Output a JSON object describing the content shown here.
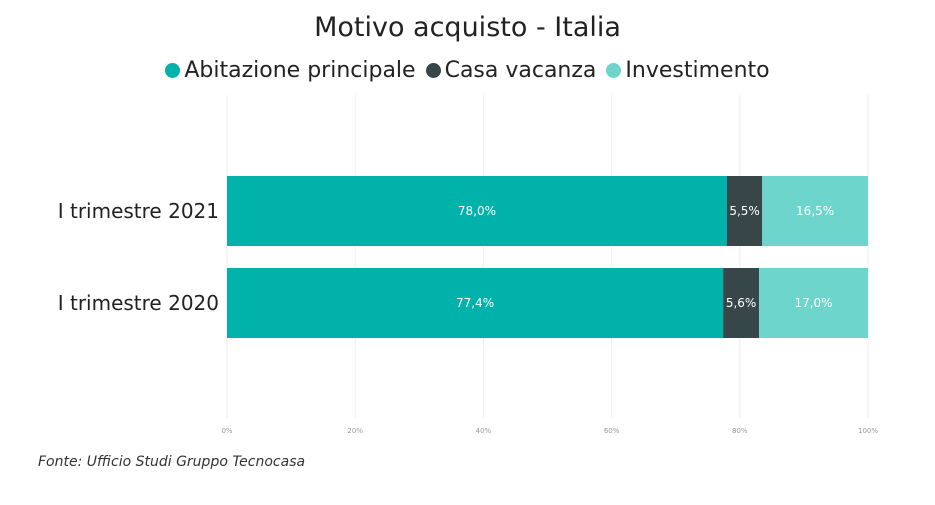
{
  "chart_data": {
    "type": "bar",
    "orientation": "horizontal",
    "stacked": true,
    "title": "Motivo acquisto - Italia",
    "categories": [
      "I trimestre 2021",
      "I trimestre 2020"
    ],
    "series": [
      {
        "name": "Abitazione principale",
        "values": [
          78.0,
          77.4
        ],
        "labels": [
          "78,0%",
          "77,4%"
        ],
        "color": "#00b2a9",
        "label_color": "#ffffff"
      },
      {
        "name": "Casa vacanza",
        "values": [
          5.5,
          5.6
        ],
        "labels": [
          "5,5%",
          "5,6%"
        ],
        "color": "#374649",
        "label_color": "#ffffff"
      },
      {
        "name": "Investimento",
        "values": [
          16.5,
          17.0
        ],
        "labels": [
          "16,5%",
          "17,0%"
        ],
        "color": "#6dd5cb",
        "label_color": "#ffffff"
      }
    ],
    "xlim": [
      0,
      100
    ],
    "x_ticks": [
      0,
      20,
      40,
      60,
      80,
      100
    ],
    "x_tick_labels": [
      "0%",
      "20%",
      "40%",
      "60%",
      "80%",
      "100%"
    ],
    "grid": true,
    "legend_position": "top-center"
  },
  "source": "Fonte: Ufficio Studi Gruppo Tecnocasa"
}
